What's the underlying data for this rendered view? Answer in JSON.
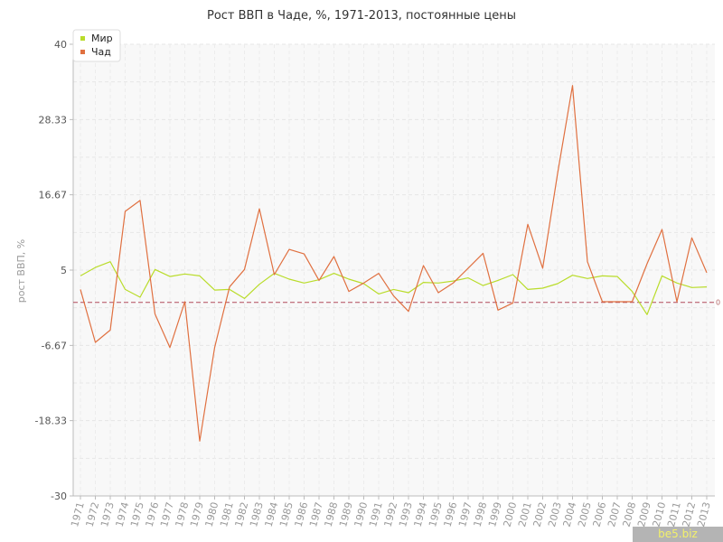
{
  "title": "Рост ВВП в Чаде, %, 1971-2013, постоянные цены",
  "watermark": "be5.biz",
  "colors": {
    "world": "#b9dc2a",
    "chad": "#e07040",
    "reference": "#b04a5a"
  },
  "chart_data": {
    "type": "line",
    "title": "Рост ВВП в Чаде, %, 1971-2013, постоянные цены",
    "xlabel": "",
    "ylabel": "рост ВВП, %",
    "ylim": [
      -30,
      40
    ],
    "yticks": [
      "40",
      "28.33",
      "16.67",
      "5",
      "-6.67",
      "-18.33",
      "-30"
    ],
    "ytick_values": [
      40,
      28.33,
      16.67,
      5,
      -6.67,
      -18.33,
      -30
    ],
    "reference_line": {
      "value": 0,
      "label": "0",
      "style": "dashed"
    },
    "grid": true,
    "legend_position": "top-left",
    "categories": [
      "1971",
      "1972",
      "1973",
      "1974",
      "1975",
      "1976",
      "1977",
      "1978",
      "1979",
      "1980",
      "1981",
      "1982",
      "1983",
      "1984",
      "1985",
      "1986",
      "1987",
      "1988",
      "1989",
      "1990",
      "1991",
      "1992",
      "1993",
      "1994",
      "1995",
      "1996",
      "1997",
      "1998",
      "1999",
      "2000",
      "2001",
      "2002",
      "2003",
      "2004",
      "2005",
      "2006",
      "2007",
      "2008",
      "2009",
      "2010",
      "2011",
      "2012",
      "2013"
    ],
    "series": [
      {
        "name": "Мир",
        "color": "#b9dc2a",
        "values": [
          4.1,
          5.4,
          6.3,
          2.0,
          0.8,
          5.1,
          4.0,
          4.4,
          4.1,
          1.9,
          2.0,
          0.6,
          2.8,
          4.5,
          3.6,
          3.0,
          3.5,
          4.5,
          3.6,
          2.9,
          1.3,
          2.0,
          1.5,
          3.1,
          3.0,
          3.3,
          3.8,
          2.6,
          3.4,
          4.3,
          2.0,
          2.2,
          2.9,
          4.2,
          3.7,
          4.1,
          4.0,
          1.7,
          -1.9,
          4.1,
          3.0,
          2.3,
          2.4
        ]
      },
      {
        "name": "Чад",
        "color": "#e07040",
        "values": [
          2.0,
          -6.2,
          -4.3,
          14.1,
          15.8,
          -1.8,
          -7.0,
          0.1,
          -21.5,
          -7.0,
          2.4,
          5.1,
          14.5,
          4.3,
          8.2,
          7.5,
          3.4,
          7.1,
          1.7,
          3.0,
          4.5,
          1.0,
          -1.4,
          5.7,
          1.5,
          3.0,
          5.3,
          7.6,
          -1.2,
          -0.1,
          12.1,
          5.3,
          20.0,
          33.6,
          6.3,
          0.1,
          0.1,
          0.1,
          6.0,
          11.3,
          0.1,
          10.0,
          4.6
        ]
      }
    ]
  }
}
